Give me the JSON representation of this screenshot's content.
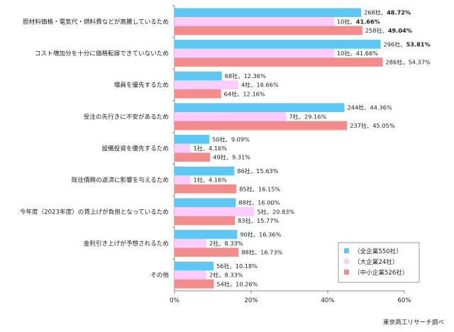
{
  "chart_data": {
    "type": "bar",
    "orientation": "horizontal",
    "categories": [
      "原材料価格・電気代・燃料費などが高騰しているため",
      "コスト増加分を十分に価格転嫁できていないため",
      "増員を優先するため",
      "受注の先行きに不安があるため",
      "設備投資を優先するため",
      "既往債務の返済に影響を与えるため",
      "今年度（2023年度）の賃上げが負担となっているため",
      "金利引き上げが予想されるため",
      "その他"
    ],
    "series": [
      {
        "name": "（全企業550社）",
        "color": "#5bc8f5",
        "values": [
          48.72,
          53.81,
          12.36,
          44.36,
          9.09,
          15.63,
          16.0,
          16.36,
          10.18
        ],
        "labels": [
          "268社、",
          "296社、",
          "68社、12.36%",
          "244社、44.36%",
          "50社、9.09%",
          "86社、15.63%",
          "88社、16.00%",
          "90社、16.36%",
          "56社、10.18%"
        ],
        "label_pct": [
          "48.72%",
          "53.81%",
          "",
          "",
          "",
          "",
          "",
          "",
          ""
        ]
      },
      {
        "name": "（大企業24社）",
        "color": "#ffccff",
        "values": [
          41.66,
          41.66,
          16.66,
          29.16,
          4.16,
          4.16,
          20.83,
          8.33,
          8.33
        ],
        "labels": [
          "10社、",
          "10社、41.66%",
          "4社、16.66%",
          "7社、29.16%",
          "1社、4.16%",
          "1社、4.16%",
          "5社、20.83%",
          "2社、8.33%",
          "2社、8.33%"
        ],
        "label_pct": [
          "41.66%",
          "",
          "",
          "",
          "",
          "",
          "",
          "",
          ""
        ]
      },
      {
        "name": "（中小企業526社）",
        "color": "#f48c8c",
        "values": [
          49.04,
          54.37,
          12.16,
          45.05,
          9.31,
          16.15,
          15.77,
          16.73,
          10.26
        ],
        "labels": [
          "258社、",
          "286社、54.37%",
          "64社、12.16%",
          "237社、45.05%",
          "49社、9.31%",
          "85社、16.15%",
          "83社、15.77%",
          "88社、16.73%",
          "54社、10.26%"
        ],
        "label_pct": [
          "49.04%",
          "",
          "",
          "",
          "",
          "",
          "",
          "",
          ""
        ]
      }
    ],
    "xlim": [
      0,
      60
    ],
    "x_ticks": [
      "0%",
      "20%",
      "40%",
      "60%"
    ],
    "grid": false,
    "legend_position": "bottom-right",
    "source": "東京商工リサーチ調べ"
  }
}
